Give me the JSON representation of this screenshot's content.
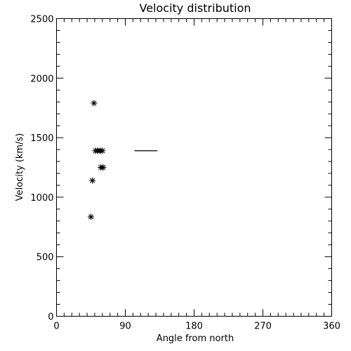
{
  "chart_data": {
    "type": "scatter",
    "title": "Velocity distribution",
    "xlabel": "Angle from north",
    "ylabel": "Velocity (km/s)",
    "xlim": [
      0,
      360
    ],
    "ylim": [
      0,
      2500
    ],
    "x_ticks": [
      0,
      90,
      180,
      270,
      360
    ],
    "y_ticks": [
      0,
      500,
      1000,
      1500,
      2000,
      2500
    ],
    "x_minor_step": 10,
    "y_minor_step": 100,
    "grid": false,
    "marker": "asterisk",
    "points": [
      {
        "x": 49,
        "y": 1790
      },
      {
        "x": 51,
        "y": 1390
      },
      {
        "x": 54,
        "y": 1390
      },
      {
        "x": 57,
        "y": 1390
      },
      {
        "x": 60,
        "y": 1390
      },
      {
        "x": 58,
        "y": 1250
      },
      {
        "x": 61,
        "y": 1250
      },
      {
        "x": 47,
        "y": 1140
      },
      {
        "x": 45,
        "y": 835
      }
    ],
    "reference_line": {
      "x_start": 102,
      "x_end": 132,
      "y": 1390
    }
  }
}
